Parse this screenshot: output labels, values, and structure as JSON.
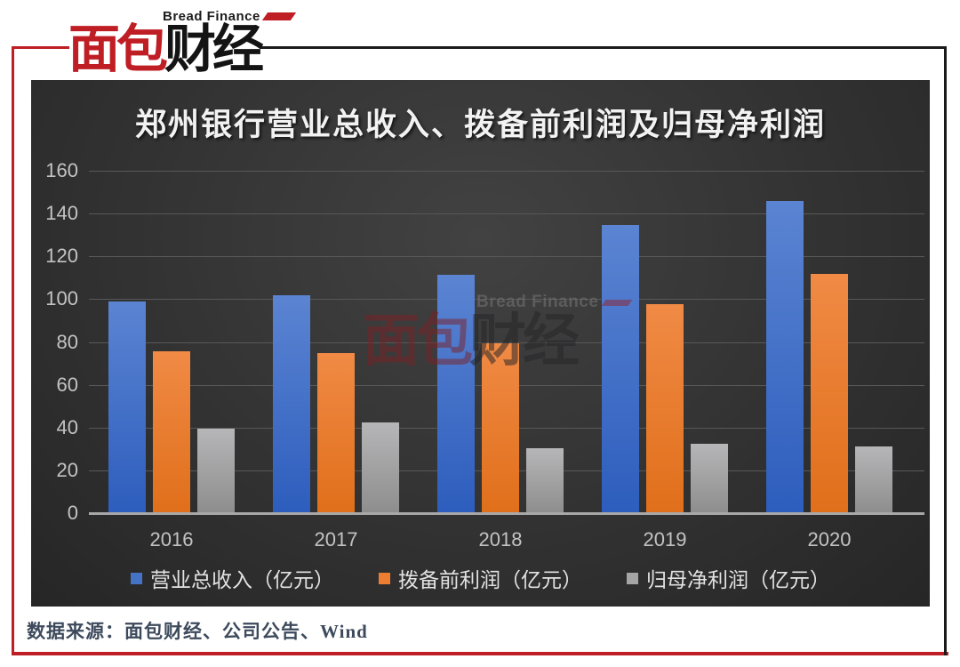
{
  "logo": {
    "subtitle": "Bread Finance",
    "brand_red": "面包",
    "brand_black": "财经"
  },
  "watermark": {
    "subtitle": "Bread Finance",
    "brand_red": "面包",
    "brand_black": "财经"
  },
  "footer": {
    "source": "数据来源：面包财经、公司公告、Wind"
  },
  "colors": {
    "frame_red": "#bf1e24",
    "frame_black": "#1a1a1a",
    "panel_bg": "#323232",
    "grid_line": "#585858",
    "axis_line": "#a8a8a8",
    "tick_text": "#c3c3c3",
    "legend_text": "#e2e2e2",
    "title_text": "#f2f2f2",
    "source_text": "#3d4a5c"
  },
  "chart_data": {
    "type": "bar",
    "title": "郑州银行营业总收入、拨备前利润及归母净利润",
    "categories": [
      "2016",
      "2017",
      "2018",
      "2019",
      "2020"
    ],
    "series": [
      {
        "name": "营业总收入（亿元）",
        "color": "#4472c4",
        "color_top": "#5b84d2",
        "color_bottom": "#2d5dbd",
        "values": [
          99.4,
          102.1,
          111.6,
          134.9,
          146.1
        ]
      },
      {
        "name": "拨备前利润（亿元）",
        "color": "#ed7d31",
        "color_top": "#f08a45",
        "color_bottom": "#e06f1a",
        "values": [
          76.0,
          75.3,
          79.9,
          98.0,
          112.2
        ]
      },
      {
        "name": "归母净利润（亿元）",
        "color": "#a5a5a5",
        "color_top": "#b6b6b8",
        "color_bottom": "#8d8d8d",
        "values": [
          39.9,
          42.8,
          30.6,
          32.9,
          31.7
        ]
      }
    ],
    "ylim": [
      0,
      160
    ],
    "yticks": [
      0,
      20,
      40,
      60,
      80,
      100,
      120,
      140,
      160
    ],
    "grid": true,
    "legend_position": "bottom",
    "source_note": "数据来源：面包财经、公司公告、Wind"
  }
}
